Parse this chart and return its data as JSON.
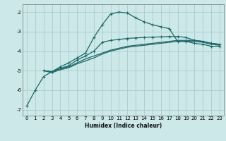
{
  "xlabel": "Humidex (Indice chaleur)",
  "bg_color": "#cce8e8",
  "grid_color": "#aacccc",
  "line_color": "#1a6868",
  "xlim": [
    -0.5,
    23.5
  ],
  "ylim": [
    -7.3,
    -1.6
  ],
  "yticks": [
    -7,
    -6,
    -5,
    -4,
    -3,
    -2
  ],
  "xticks": [
    0,
    1,
    2,
    3,
    4,
    5,
    6,
    7,
    8,
    9,
    10,
    11,
    12,
    13,
    14,
    15,
    16,
    17,
    18,
    19,
    20,
    21,
    22,
    23
  ],
  "curvy_x": [
    0,
    1,
    2,
    3,
    4,
    5,
    6,
    7,
    8,
    9,
    10,
    11,
    12,
    13,
    14,
    15,
    16,
    17,
    18,
    19,
    20,
    21,
    22,
    23
  ],
  "curvy_y": [
    -6.8,
    -6.0,
    -5.3,
    -5.05,
    -4.8,
    -4.6,
    -4.35,
    -4.1,
    -3.3,
    -2.65,
    -2.1,
    -2.0,
    -2.05,
    -2.3,
    -2.5,
    -2.65,
    -2.75,
    -2.85,
    -3.5,
    -3.5,
    -3.6,
    -3.65,
    -3.75,
    -3.75
  ],
  "lin1_x": [
    2,
    3,
    4,
    5,
    6,
    7,
    8,
    9,
    10,
    11,
    12,
    13,
    14,
    15,
    16,
    17,
    18,
    19,
    20,
    21,
    22,
    23
  ],
  "lin1_y": [
    -5.0,
    -5.05,
    -4.9,
    -4.8,
    -4.6,
    -4.4,
    -4.25,
    -4.1,
    -3.95,
    -3.85,
    -3.75,
    -3.7,
    -3.65,
    -3.6,
    -3.55,
    -3.5,
    -3.45,
    -3.45,
    -3.45,
    -3.5,
    -3.6,
    -3.65
  ],
  "lin2_x": [
    2,
    3,
    4,
    5,
    6,
    7,
    8,
    9,
    10,
    11,
    12,
    13,
    14,
    15,
    16,
    17,
    18,
    19,
    20,
    21,
    22,
    23
  ],
  "lin2_y": [
    -5.0,
    -5.1,
    -4.95,
    -4.85,
    -4.65,
    -4.5,
    -4.35,
    -4.15,
    -4.0,
    -3.9,
    -3.8,
    -3.75,
    -3.7,
    -3.65,
    -3.6,
    -3.55,
    -3.5,
    -3.5,
    -3.5,
    -3.55,
    -3.65,
    -3.7
  ],
  "mark2_x": [
    2,
    3,
    4,
    5,
    6,
    7,
    8,
    9,
    10,
    11,
    12,
    13,
    14,
    15,
    16,
    17,
    18,
    19,
    20,
    21,
    22,
    23
  ],
  "mark2_y": [
    -5.0,
    -5.05,
    -4.88,
    -4.75,
    -4.45,
    -4.25,
    -4.0,
    -3.55,
    -3.45,
    -3.4,
    -3.35,
    -3.32,
    -3.3,
    -3.28,
    -3.27,
    -3.25,
    -3.25,
    -3.3,
    -3.45,
    -3.5,
    -3.6,
    -3.65
  ]
}
